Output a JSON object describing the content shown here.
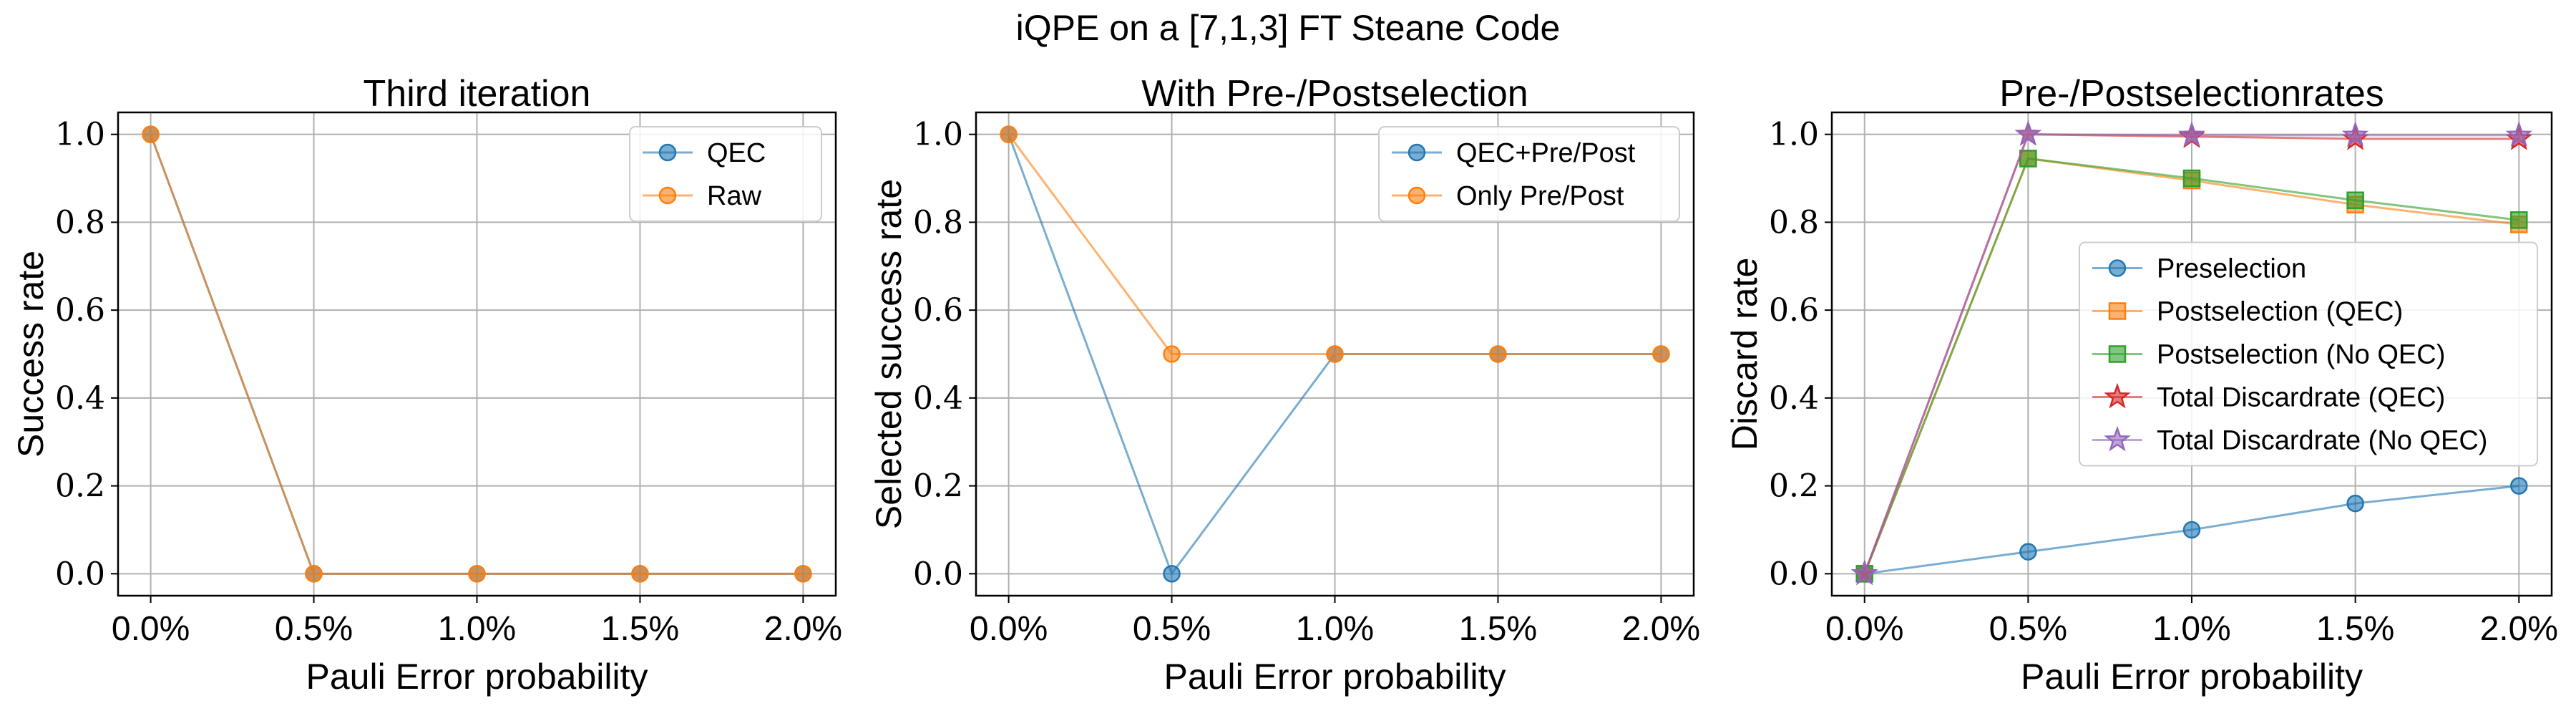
{
  "figure": {
    "title": "iQPE on a [7,1,3] FT Steane Code"
  },
  "chart_data": [
    {
      "type": "line",
      "title": "Third iteration",
      "xlabel": "Pauli Error probability",
      "ylabel": "Success rate",
      "categories": [
        "0.0%",
        "0.5%",
        "1.0%",
        "1.5%",
        "2.0%"
      ],
      "ylim": [
        -0.05,
        1.05
      ],
      "yticks": [
        "0.0",
        "0.2",
        "0.4",
        "0.6",
        "0.8",
        "1.0"
      ],
      "grid": true,
      "legend_position": "top-right",
      "series": [
        {
          "name": "QEC",
          "color": "#1f77b4",
          "marker": "circle",
          "values": [
            1.0,
            0.0,
            0.0,
            0.0,
            0.0
          ]
        },
        {
          "name": "Raw",
          "color": "#ff7f0e",
          "marker": "circle",
          "values": [
            1.0,
            0.0,
            0.0,
            0.0,
            0.0
          ]
        }
      ]
    },
    {
      "type": "line",
      "title": "With Pre-/Postselection",
      "xlabel": "Pauli Error probability",
      "ylabel": "Selected success rate",
      "categories": [
        "0.0%",
        "0.5%",
        "1.0%",
        "1.5%",
        "2.0%"
      ],
      "ylim": [
        -0.05,
        1.05
      ],
      "yticks": [
        "0.0",
        "0.2",
        "0.4",
        "0.6",
        "0.8",
        "1.0"
      ],
      "grid": true,
      "legend_position": "top-right",
      "series": [
        {
          "name": "QEC+Pre/Post",
          "color": "#1f77b4",
          "marker": "circle",
          "values": [
            1.0,
            0.0,
            0.5,
            0.5,
            0.5
          ]
        },
        {
          "name": "Only Pre/Post",
          "color": "#ff7f0e",
          "marker": "circle",
          "values": [
            1.0,
            0.5,
            0.5,
            0.5,
            0.5
          ]
        }
      ]
    },
    {
      "type": "line",
      "title": "Pre-/Postselectionrates",
      "xlabel": "Pauli Error probability",
      "ylabel": "Discard rate",
      "categories": [
        "0.0%",
        "0.5%",
        "1.0%",
        "1.5%",
        "2.0%"
      ],
      "ylim": [
        -0.05,
        1.05
      ],
      "yticks": [
        "0.0",
        "0.2",
        "0.4",
        "0.6",
        "0.8",
        "1.0"
      ],
      "grid": true,
      "legend_position": "center-right",
      "series": [
        {
          "name": "Preselection",
          "color": "#1f77b4",
          "marker": "circle",
          "values": [
            0.0,
            0.05,
            0.1,
            0.16,
            0.2
          ]
        },
        {
          "name": "Postselection (QEC)",
          "color": "#ff7f0e",
          "marker": "square",
          "values": [
            0.0,
            0.945,
            0.895,
            0.84,
            0.795
          ]
        },
        {
          "name": "Postselection (No QEC)",
          "color": "#2ca02c",
          "marker": "square",
          "values": [
            0.0,
            0.945,
            0.9,
            0.85,
            0.805
          ]
        },
        {
          "name": "Total Discardrate (QEC)",
          "color": "#d62728",
          "marker": "star",
          "values": [
            0.0,
            1.0,
            0.995,
            0.99,
            0.99
          ]
        },
        {
          "name": "Total Discardrate (No QEC)",
          "color": "#9467bd",
          "marker": "star",
          "values": [
            0.0,
            1.0,
            0.998,
            0.998,
            0.998
          ]
        }
      ]
    }
  ]
}
